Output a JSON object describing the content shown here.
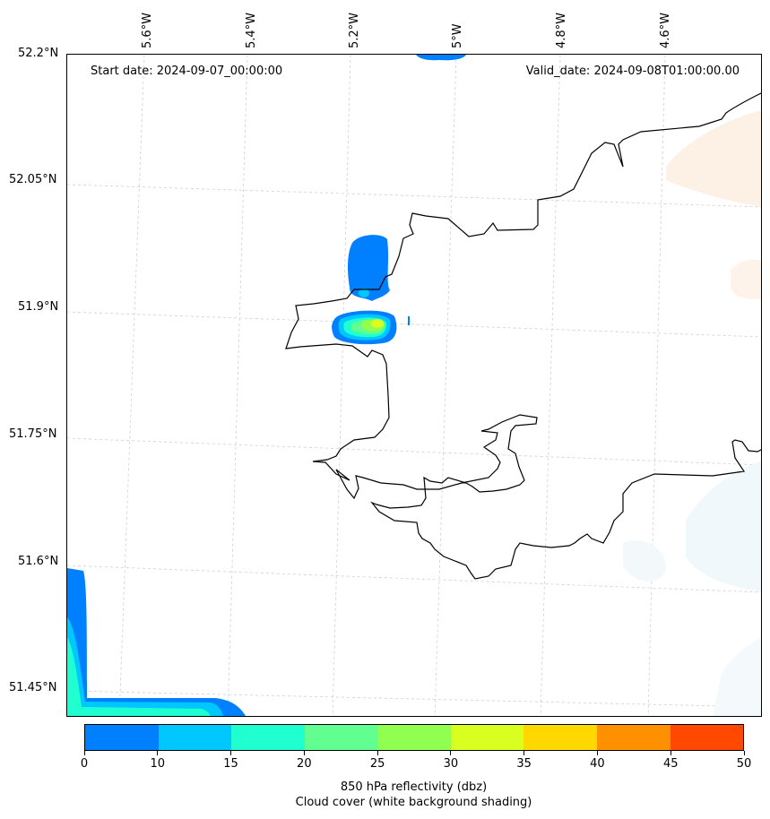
{
  "map": {
    "start_date": "Start date: 2024-09-07_00:00:00",
    "valid_date": "Valid_date: 2024-09-08T01:00:00.00",
    "lon_labels": [
      "5.6°W",
      "5.4°W",
      "5.2°W",
      "5°W",
      "4.8°W",
      "4.6°W"
    ],
    "lat_labels": [
      "52.2°N",
      "52.05°N",
      "51.9°N",
      "51.75°N",
      "51.6°N",
      "51.45°N"
    ]
  },
  "colorbar": {
    "ticks": [
      "0",
      "10",
      "15",
      "20",
      "25",
      "30",
      "35",
      "40",
      "45",
      "50"
    ],
    "colors": [
      "#0080ff",
      "#00c8ff",
      "#20ffd0",
      "#60ff90",
      "#90ff50",
      "#d8ff20",
      "#ffd800",
      "#ff9000",
      "#ff4800"
    ],
    "title_line1": "850 hPa reflectivity (dbz)",
    "title_line2": "Cloud cover (white background shading)"
  }
}
